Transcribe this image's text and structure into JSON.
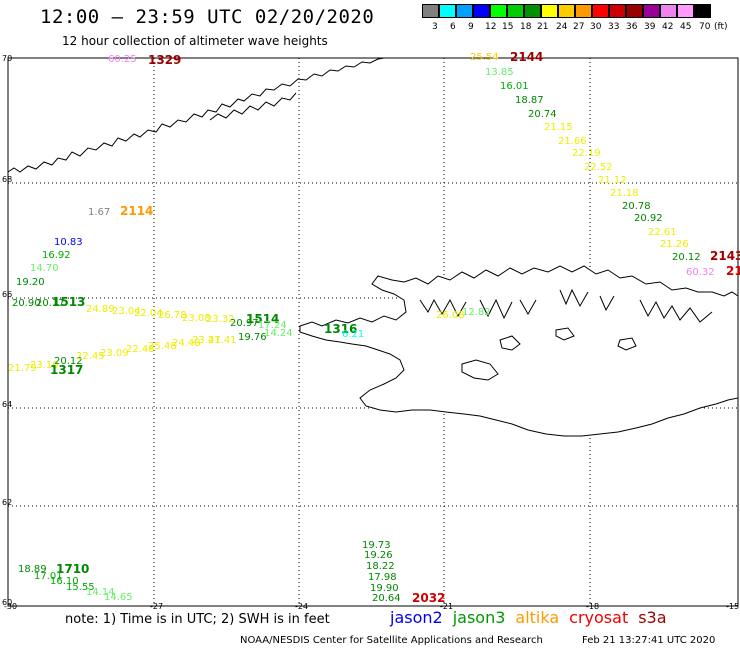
{
  "header": {
    "title": "12:00 – 23:59 UTC 02/20/2020",
    "subtitle": "12 hour collection of altimeter wave heights"
  },
  "scale": {
    "colors": [
      "#808080",
      "#00ffff",
      "#00a0ff",
      "#0000ff",
      "#00ff00",
      "#00cc00",
      "#009000",
      "#ffff00",
      "#ffcc00",
      "#ff9900",
      "#ff0000",
      "#cc0000",
      "#990000",
      "#990099",
      "#ee82ee",
      "#ff99ff",
      "#000000"
    ],
    "labels": [
      "3",
      "6",
      "9",
      "12",
      "15",
      "18",
      "21",
      "24",
      "27",
      "30",
      "33",
      "36",
      "39",
      "42",
      "45",
      "70",
      "(ft)"
    ]
  },
  "axes": {
    "lat_labels": [
      "70",
      "68",
      "66",
      "64",
      "62",
      "60"
    ],
    "lon_labels": [
      "-30",
      "-27",
      "-24",
      "-21",
      "-18",
      "-15"
    ]
  },
  "observations": [
    {
      "text": "60.25",
      "color": "#ee82ee"
    },
    {
      "text": "1329",
      "color": "#990000",
      "big": true
    },
    {
      "text": "25.54",
      "color": "#ffcc00"
    },
    {
      "text": "2144",
      "color": "#990000",
      "big": true
    },
    {
      "text": "13.85",
      "color": "#66ee66"
    },
    {
      "text": "16.01",
      "color": "#00aa00"
    },
    {
      "text": "18.87",
      "color": "#008800"
    },
    {
      "text": "20.74",
      "color": "#008800"
    },
    {
      "text": "21.15",
      "color": "#eeee00"
    },
    {
      "text": "21.66",
      "color": "#eeee00"
    },
    {
      "text": "22.19",
      "color": "#eeee00"
    },
    {
      "text": "22.52",
      "color": "#eeee00"
    },
    {
      "text": "21.12",
      "color": "#eeee00"
    },
    {
      "text": "21.18",
      "color": "#eeee00"
    },
    {
      "text": "20.78",
      "color": "#008800"
    },
    {
      "text": "20.92",
      "color": "#008800"
    },
    {
      "text": "22.61",
      "color": "#eeee00"
    },
    {
      "text": "21.26",
      "color": "#eeee00"
    },
    {
      "text": "20.12",
      "color": "#008800"
    },
    {
      "text": "2143",
      "color": "#990000",
      "big": true
    },
    {
      "text": "60.32",
      "color": "#ee82ee"
    },
    {
      "text": "21",
      "color": "#cc0000",
      "big": true
    },
    {
      "text": "1.67",
      "color": "#808080"
    },
    {
      "text": "2114",
      "color": "#ff9900",
      "big": true
    },
    {
      "text": "10.83",
      "color": "#0000ff"
    },
    {
      "text": "16.92",
      "color": "#00aa00"
    },
    {
      "text": "14.70",
      "color": "#66ee66"
    },
    {
      "text": "19.20",
      "color": "#008800"
    },
    {
      "text": "20.90",
      "color": "#008800"
    },
    {
      "text": "20.17",
      "color": "#008800"
    },
    {
      "text": "1513",
      "color": "#008800",
      "big": true
    },
    {
      "text": "24.89",
      "color": "#eeee00"
    },
    {
      "text": "23.04",
      "color": "#eeee00"
    },
    {
      "text": "22.04",
      "color": "#eeee00"
    },
    {
      "text": "26.78",
      "color": "#eeee00"
    },
    {
      "text": "23.08",
      "color": "#eeee00"
    },
    {
      "text": "23.32",
      "color": "#eeee00"
    },
    {
      "text": "20.97",
      "color": "#008800"
    },
    {
      "text": "1514",
      "color": "#008800",
      "big": true
    },
    {
      "text": "17.24",
      "color": "#66ee66"
    },
    {
      "text": "19.76",
      "color": "#008800"
    },
    {
      "text": "14.24",
      "color": "#66ee66"
    },
    {
      "text": "1316",
      "color": "#008800",
      "big": true
    },
    {
      "text": "21.41",
      "color": "#eeee00"
    },
    {
      "text": "26.08",
      "color": "#eeee00"
    },
    {
      "text": "12.82",
      "color": "#66ee66"
    },
    {
      "text": "6.21",
      "color": "#00ffff"
    },
    {
      "text": "21.79",
      "color": "#eeee00"
    },
    {
      "text": "23.19",
      "color": "#eeee00"
    },
    {
      "text": "20.12",
      "color": "#008800"
    },
    {
      "text": "1317",
      "color": "#008800",
      "big": true
    },
    {
      "text": "22.45",
      "color": "#eeee00"
    },
    {
      "text": "23.09",
      "color": "#eeee00"
    },
    {
      "text": "22.48",
      "color": "#eeee00"
    },
    {
      "text": "25.48",
      "color": "#eeee00"
    },
    {
      "text": "24.48",
      "color": "#eeee00"
    },
    {
      "text": "23.47",
      "color": "#eeee00"
    },
    {
      "text": "18.89",
      "color": "#008800"
    },
    {
      "text": "1710",
      "color": "#008800",
      "big": true
    },
    {
      "text": "17.01",
      "color": "#00aa00"
    },
    {
      "text": "16.10",
      "color": "#00aa00"
    },
    {
      "text": "15.55",
      "color": "#00aa00"
    },
    {
      "text": "14.14",
      "color": "#66ee66"
    },
    {
      "text": "14.65",
      "color": "#66ee66"
    },
    {
      "text": "19.73",
      "color": "#008800"
    },
    {
      "text": "19.26",
      "color": "#008800"
    },
    {
      "text": "18.22",
      "color": "#008800"
    },
    {
      "text": "17.98",
      "color": "#008800"
    },
    {
      "text": "19.90",
      "color": "#008800"
    },
    {
      "text": "20.64",
      "color": "#008800"
    },
    {
      "text": "2032",
      "color": "#cc0000",
      "big": true
    }
  ],
  "footer": {
    "note": "note:  1) Time is in UTC;  2) SWH is in feet",
    "satellites": [
      {
        "name": "jason2",
        "color": "#0000ee"
      },
      {
        "name": "jason3",
        "color": "#009900"
      },
      {
        "name": "altika",
        "color": "#ff9900"
      },
      {
        "name": "cryosat",
        "color": "#ee0000"
      },
      {
        "name": "s3a",
        "color": "#990000"
      }
    ],
    "credit": "NOAA/NESDIS Center for Satellite Applications and Research",
    "timestamp": "Feb 21 13:27:41 UTC 2020"
  }
}
